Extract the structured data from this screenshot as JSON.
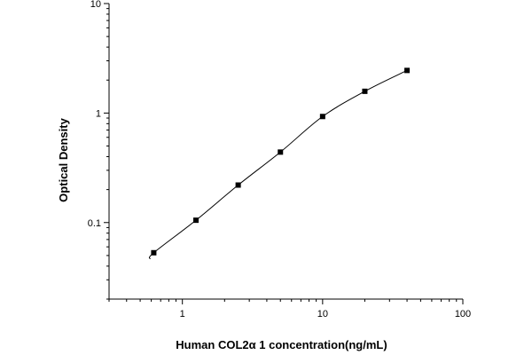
{
  "chart_data": {
    "type": "scatter",
    "title": "",
    "xlabel": "Human COL2α 1 concentration(ng/mL)",
    "ylabel": "Optical Density",
    "x_scale": "log",
    "y_scale": "log",
    "xlim": [
      0.3,
      100
    ],
    "ylim": [
      0.02,
      10
    ],
    "x_ticks": [
      {
        "value": 1,
        "label": "1"
      },
      {
        "value": 10,
        "label": "10"
      },
      {
        "value": 100,
        "label": "100"
      }
    ],
    "y_ticks": [
      {
        "value": 0.1,
        "label": "0.1"
      },
      {
        "value": 1,
        "label": "1"
      },
      {
        "value": 10,
        "label": "10"
      }
    ],
    "grid": false,
    "legend": "none",
    "series": [
      {
        "x": [
          0.625,
          1.25,
          2.5,
          5,
          10,
          20,
          40
        ],
        "y": [
          0.053,
          0.105,
          0.22,
          0.44,
          0.93,
          1.58,
          2.45
        ],
        "marker": "square",
        "fit_line": true,
        "color": "#000000"
      }
    ]
  }
}
